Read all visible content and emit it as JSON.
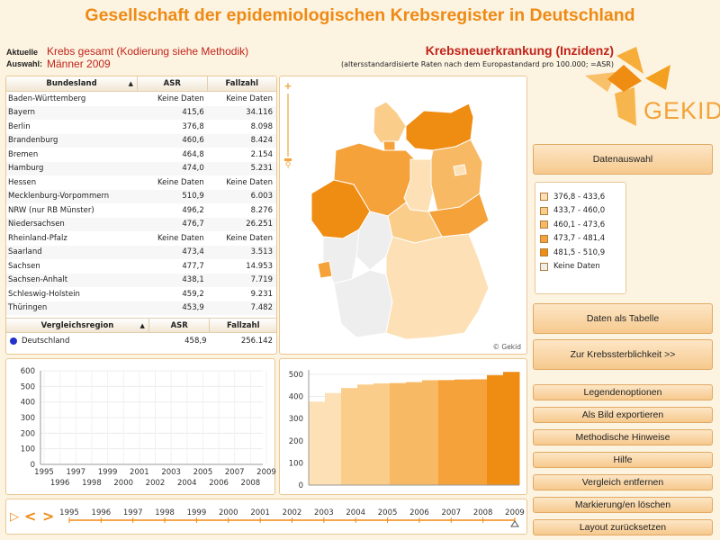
{
  "title": "Gesellschaft der epidemiologischen Krebsregister in Deutschland",
  "selection": {
    "label_line1": "Aktuelle",
    "label_line2": "Auswahl:",
    "value_line1": "Krebs gesamt (Kodierung siehe Methodik)",
    "value_line2": "Männer 2009"
  },
  "heading": {
    "title": "Krebsneuerkrankung (Inzidenz)",
    "subtitle": "(altersstandardisierte Raten nach dem Europastandard pro 100.000; =ASR)"
  },
  "logo_text": "GEKID",
  "table": {
    "headers": [
      "Bundesland",
      "ASR",
      "Fallzahl"
    ],
    "sort_icon": "▲",
    "rows": [
      [
        "Baden-Württemberg",
        "Keine Daten",
        "Keine Daten"
      ],
      [
        "Bayern",
        "415,6",
        "34.116"
      ],
      [
        "Berlin",
        "376,8",
        "8.098"
      ],
      [
        "Brandenburg",
        "460,6",
        "8.424"
      ],
      [
        "Bremen",
        "464,8",
        "2.154"
      ],
      [
        "Hamburg",
        "474,0",
        "5.231"
      ],
      [
        "Hessen",
        "Keine Daten",
        "Keine Daten"
      ],
      [
        "Mecklenburg-Vorpommern",
        "510,9",
        "6.003"
      ],
      [
        "NRW (nur RB Münster)",
        "496,2",
        "8.276"
      ],
      [
        "Niedersachsen",
        "476,7",
        "26.251"
      ],
      [
        "Rheinland-Pfalz",
        "Keine Daten",
        "Keine Daten"
      ],
      [
        "Saarland",
        "473,4",
        "3.513"
      ],
      [
        "Sachsen",
        "477,7",
        "14.953"
      ],
      [
        "Sachsen-Anhalt",
        "438,1",
        "7.719"
      ],
      [
        "Schleswig-Holstein",
        "459,2",
        "9.231"
      ],
      [
        "Thüringen",
        "453,9",
        "7.482"
      ]
    ]
  },
  "compare": {
    "headers": [
      "Vergleichsregion",
      "ASR",
      "Fallzahl"
    ],
    "row": [
      "Deutschland",
      "458,9",
      "256.142"
    ]
  },
  "map_copyright": "© Gekid",
  "legend": [
    {
      "label": "376,8 - 433,6",
      "color": "#fde0b5"
    },
    {
      "label": "433,7 - 460,0",
      "color": "#fbcd8a"
    },
    {
      "label": "460,1 - 473,6",
      "color": "#f8b964"
    },
    {
      "label": "473,7 - 481,4",
      "color": "#f5a23b"
    },
    {
      "label": "481,5 - 510,9",
      "color": "#ef8c12"
    },
    {
      "label": "Keine Daten",
      "color": "#eeeeee"
    }
  ],
  "buttons": {
    "datenauswahl": "Datenauswahl",
    "tabelle": "Daten als Tabelle",
    "sterblichkeit": "Zur Krebssterblichkeit >>",
    "legende": "Legendenoptionen",
    "bild": "Als Bild exportieren",
    "methodik": "Methodische Hinweise",
    "hilfe": "Hilfe",
    "vergleich": "Vergleich entfernen",
    "markierung": "Markierung/en löschen",
    "layout": "Layout zurücksetzen"
  },
  "line_chart": {
    "yticks": [
      "600",
      "500",
      "400",
      "300",
      "200",
      "100",
      "0"
    ],
    "xticks_top": [
      "1995",
      "1997",
      "1999",
      "2001",
      "2003",
      "2005",
      "2007",
      "2009"
    ],
    "xticks_bottom": [
      "1996",
      "1998",
      "2000",
      "2002",
      "2004",
      "2006",
      "2008"
    ]
  },
  "timeline": {
    "years": [
      "1995",
      "1996",
      "1997",
      "1998",
      "1999",
      "2000",
      "2001",
      "2002",
      "2003",
      "2004",
      "2005",
      "2006",
      "2007",
      "2008",
      "2009"
    ],
    "selected": "2009",
    "play_icon": "play-icon",
    "prev_label": "<",
    "next_label": ">"
  },
  "chart_data": {
    "type": "bar",
    "title": "",
    "xlabel": "",
    "ylabel": "",
    "ylim": [
      0,
      520
    ],
    "yticks": [
      "500",
      "400",
      "300",
      "200",
      "100",
      "0"
    ],
    "values": [
      376.8,
      415.6,
      438.1,
      453.9,
      459.2,
      460.6,
      464.8,
      473.4,
      474.0,
      476.7,
      477.7,
      496.2,
      510.9
    ],
    "colors": [
      "#fde0b5",
      "#fde0b5",
      "#fbcd8a",
      "#fbcd8a",
      "#fbcd8a",
      "#f8b964",
      "#f8b964",
      "#f8b964",
      "#f5a23b",
      "#f5a23b",
      "#f5a23b",
      "#ef8c12",
      "#ef8c12"
    ]
  }
}
